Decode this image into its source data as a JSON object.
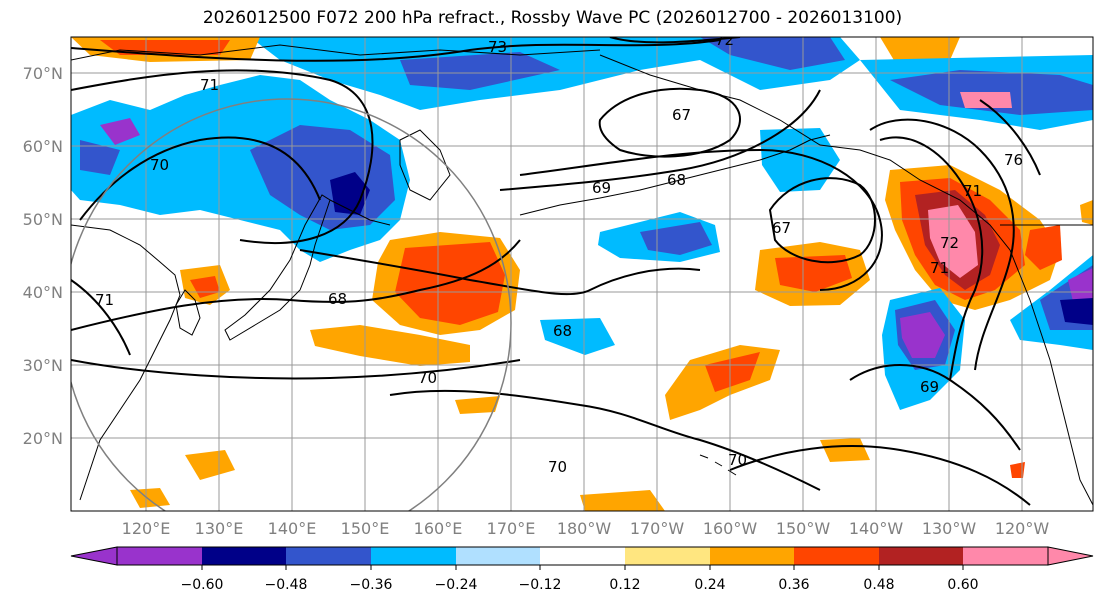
{
  "title": "2026012500 F072 200 hPa refract., Rossby Wave PC (2026012700 - 2026013100)",
  "colors": {
    "c_m072": "#9933cc",
    "c_m060": "#000088",
    "c_m048": "#3355cc",
    "c_m036": "#00bbff",
    "c_m024": "#b0e0ff",
    "c_zero": "#ffffff",
    "c_p012": "#ffe680",
    "c_p024": "#ffa500",
    "c_p036": "#ff4500",
    "c_p048": "#b22222",
    "c_p060": "#ff88aa",
    "contour": "#000000",
    "grid": "#999999",
    "circle": "#808080",
    "coast": "#000000"
  },
  "map": {
    "lat_labels": [
      "70°N",
      "60°N",
      "50°N",
      "40°N",
      "30°N",
      "20°N"
    ],
    "lon_labels": [
      "120°E",
      "130°E",
      "140°E",
      "150°E",
      "160°E",
      "170°E",
      "180°W",
      "170°W",
      "160°W",
      "150°W",
      "140°W",
      "130°W",
      "120°W"
    ],
    "contour_labels": [
      "73",
      "72",
      "67",
      "69",
      "68",
      "70",
      "71",
      "67",
      "68",
      "68",
      "70",
      "69",
      "70",
      "71",
      "70",
      "71",
      "76",
      "72",
      "71"
    ]
  },
  "colorbar": {
    "ticks": [
      "−0.60",
      "−0.48",
      "−0.36",
      "−0.24",
      "−0.12",
      "0.12",
      "0.24",
      "0.36",
      "0.48",
      "0.60"
    ]
  }
}
